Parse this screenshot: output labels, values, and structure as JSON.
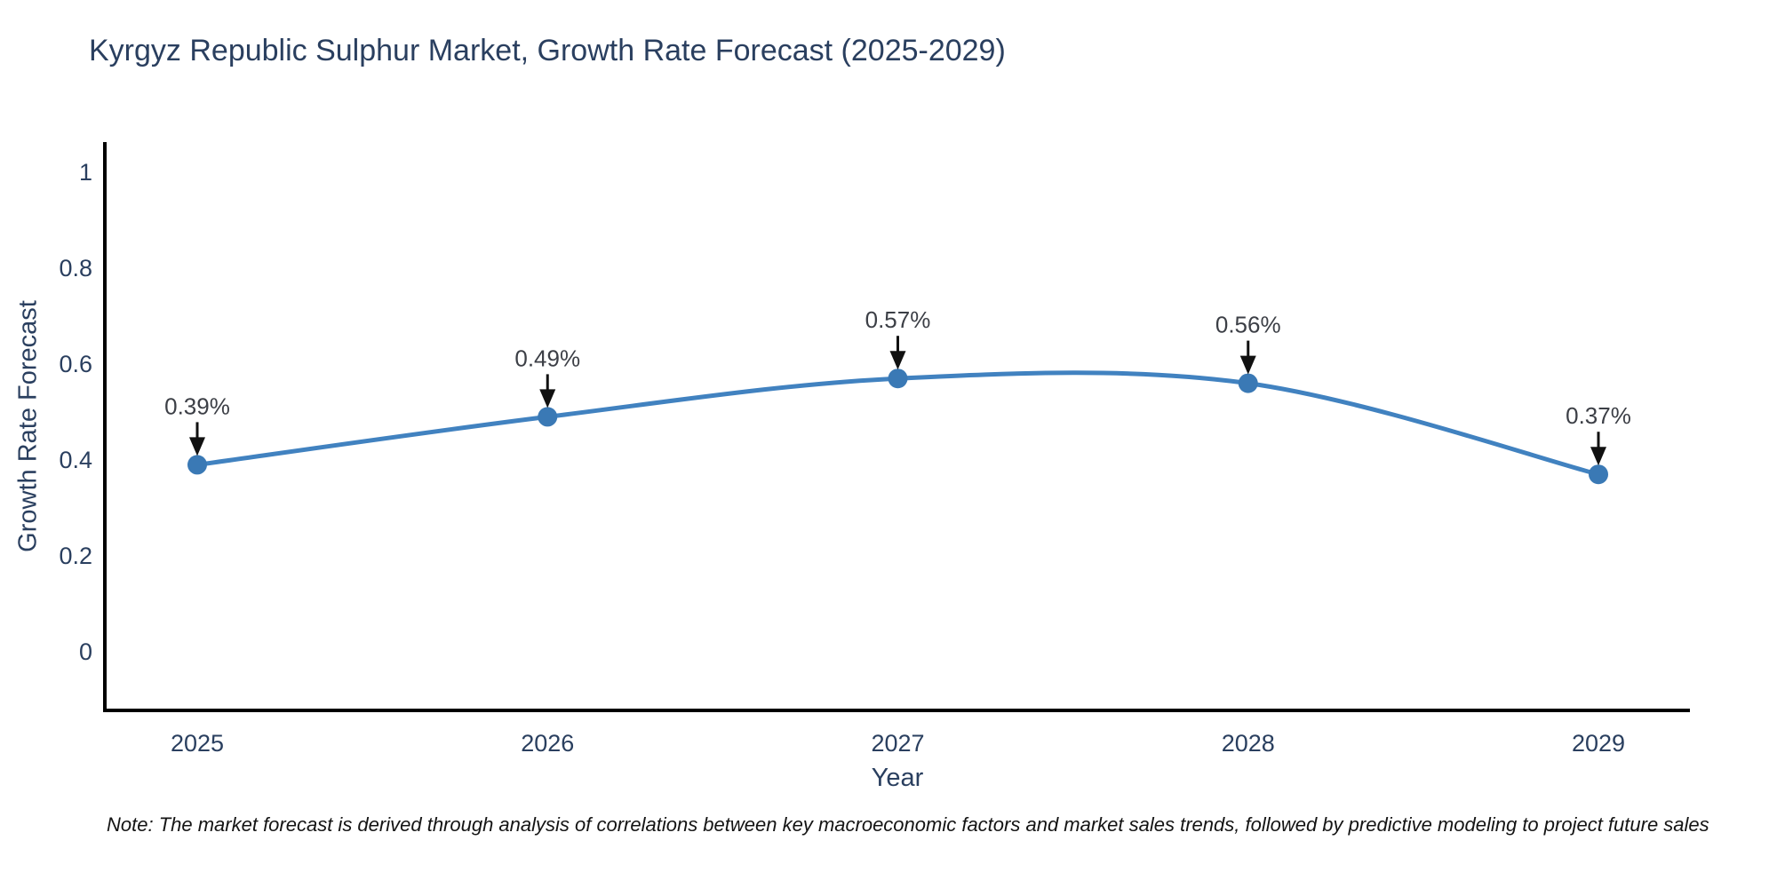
{
  "title": "Kyrgyz Republic Sulphur Market, Growth Rate Forecast (2025-2029)",
  "note": "Note: The market forecast is derived through analysis of correlations between key macroeconomic factors and market sales trends, followed by predictive modeling to project future sales",
  "colors": {
    "background": "#ffffff",
    "title_text": "#2a3f5f",
    "axis_text": "#2a3f5f",
    "axis_line": "#000000",
    "line": "#4182c0",
    "marker": "#3a79b5",
    "annotation_text": "#3c3f46",
    "arrow": "#111111"
  },
  "chart_data": {
    "type": "line",
    "line_shape": "spline",
    "title": "Kyrgyz Republic Sulphur Market, Growth Rate Forecast (2025-2029)",
    "xlabel": "Year",
    "ylabel": "Growth Rate Forecast",
    "categories": [
      "2025",
      "2026",
      "2027",
      "2028",
      "2029"
    ],
    "x": [
      2025,
      2026,
      2027,
      2028,
      2029
    ],
    "values": [
      0.39,
      0.49,
      0.57,
      0.56,
      0.37
    ],
    "point_labels": [
      "0.39%",
      "0.49%",
      "0.57%",
      "0.56%",
      "0.37%"
    ],
    "yticks": [
      {
        "value": 0,
        "label": "0"
      },
      {
        "value": 0.2,
        "label": "0.2"
      },
      {
        "value": 0.4,
        "label": "0.4"
      },
      {
        "value": 0.6,
        "label": "0.6"
      },
      {
        "value": 0.8,
        "label": "0.8"
      },
      {
        "value": 1,
        "label": "1"
      }
    ],
    "ylim": [
      -0.12,
      1.06
    ],
    "grid": false,
    "legend": "none",
    "marker_style": "circle",
    "annotation_style": "down-arrow"
  }
}
